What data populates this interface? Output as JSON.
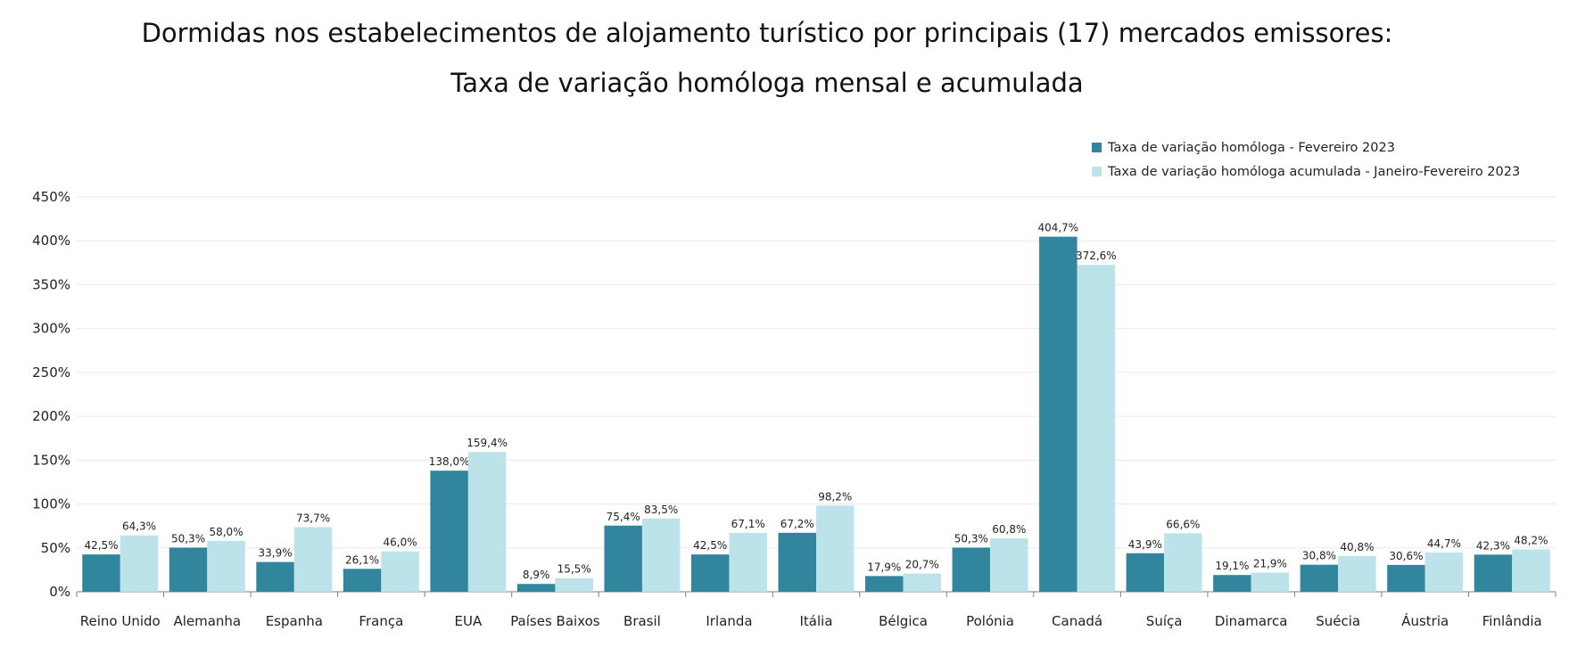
{
  "title_line1": "Dormidas nos estabelecimentos de alojamento turístico por principais (17) mercados emissores:",
  "title_line2": "Taxa de variação homóloga mensal e acumulada",
  "colors": {
    "series1": "#31859c",
    "series2": "#bde3ea",
    "grid": "#e9e9e9",
    "axis": "#7f7f7f"
  },
  "chart_data": {
    "type": "bar",
    "title": "Dormidas nos estabelecimentos de alojamento turístico por principais (17) mercados emissores: Taxa de variação homóloga mensal e acumulada",
    "categories": [
      "Reino Unido",
      "Alemanha",
      "Espanha",
      "França",
      "EUA",
      "Países Baixos",
      "Brasil",
      "Irlanda",
      "Itália",
      "Bélgica",
      "Polónia",
      "Canadá",
      "Suíça",
      "Dinamarca",
      "Suécia",
      "Áustria",
      "Finlândia"
    ],
    "series": [
      {
        "name": "Taxa de variação homóloga - Fevereiro 2023",
        "values": [
          42.5,
          50.3,
          33.9,
          26.1,
          138.0,
          8.9,
          75.4,
          42.5,
          67.2,
          17.9,
          50.3,
          404.7,
          43.9,
          19.1,
          30.8,
          30.6,
          42.3
        ],
        "labels": [
          "42,5%",
          "50,3%",
          "33,9%",
          "26,1%",
          "138,0%",
          "8,9%",
          "75,4%",
          "42,5%",
          "67,2%",
          "17,9%",
          "50,3%",
          "404,7%",
          "43,9%",
          "19,1%",
          "30,8%",
          "30,6%",
          "42,3%"
        ]
      },
      {
        "name": "Taxa de variação homóloga acumulada - Janeiro-Fevereiro 2023",
        "values": [
          64.3,
          58.0,
          73.7,
          46.0,
          159.4,
          15.5,
          83.5,
          67.1,
          98.2,
          20.7,
          60.8,
          372.6,
          66.6,
          21.9,
          40.8,
          44.7,
          48.2
        ],
        "labels": [
          "64,3%",
          "58,0%",
          "73,7%",
          "46,0%",
          "159,4%",
          "15,5%",
          "83,5%",
          "67,1%",
          "98,2%",
          "20,7%",
          "60,8%",
          "372,6%",
          "66,6%",
          "21,9%",
          "40,8%",
          "44,7%",
          "48,2%"
        ]
      }
    ],
    "ylim": [
      0,
      450
    ],
    "yticks": [
      "0%",
      "50%",
      "100%",
      "150%",
      "200%",
      "250%",
      "300%",
      "350%",
      "400%",
      "450%"
    ],
    "xlabel": "",
    "ylabel": "",
    "grid": true,
    "legend": "top-right"
  }
}
